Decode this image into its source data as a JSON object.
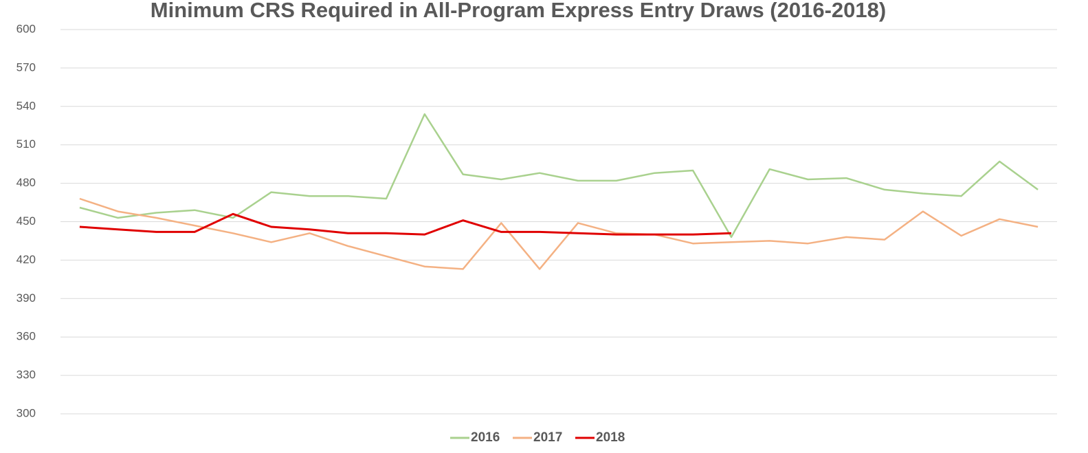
{
  "chart_data": {
    "type": "line",
    "title": "Minimum CRS Required in All-Program Express Entry Draws (2016-2018)",
    "categories": [
      null,
      null,
      null,
      null,
      null,
      null,
      null,
      null,
      null,
      null,
      null,
      null,
      null,
      null,
      null,
      null,
      null,
      null,
      null,
      null,
      null,
      null,
      null,
      null,
      null,
      null
    ],
    "series": [
      {
        "name": "2016",
        "color": "#a9d18e",
        "values": [
          461,
          453,
          457,
          459,
          453,
          473,
          470,
          470,
          468,
          534,
          487,
          483,
          488,
          482,
          482,
          488,
          490,
          438,
          491,
          483,
          484,
          475,
          472,
          470,
          497,
          475
        ]
      },
      {
        "name": "2017",
        "color": "#f4b183",
        "values": [
          468,
          458,
          453,
          447,
          441,
          434,
          441,
          431,
          423,
          415,
          413,
          449,
          413,
          449,
          441,
          440,
          433,
          434,
          435,
          433,
          438,
          436,
          458,
          439,
          452,
          446
        ]
      },
      {
        "name": "2018",
        "color": "#e00000",
        "values": [
          446,
          444,
          442,
          442,
          456,
          446,
          444,
          441,
          441,
          440,
          451,
          442,
          442,
          441,
          440,
          440,
          440,
          441,
          null,
          null,
          null,
          null,
          null,
          null,
          null,
          null
        ]
      }
    ],
    "ylim": [
      300,
      600
    ],
    "yticks": [
      300,
      330,
      360,
      390,
      420,
      450,
      480,
      510,
      540,
      570,
      600
    ],
    "grid": true,
    "legend": "bottom"
  }
}
